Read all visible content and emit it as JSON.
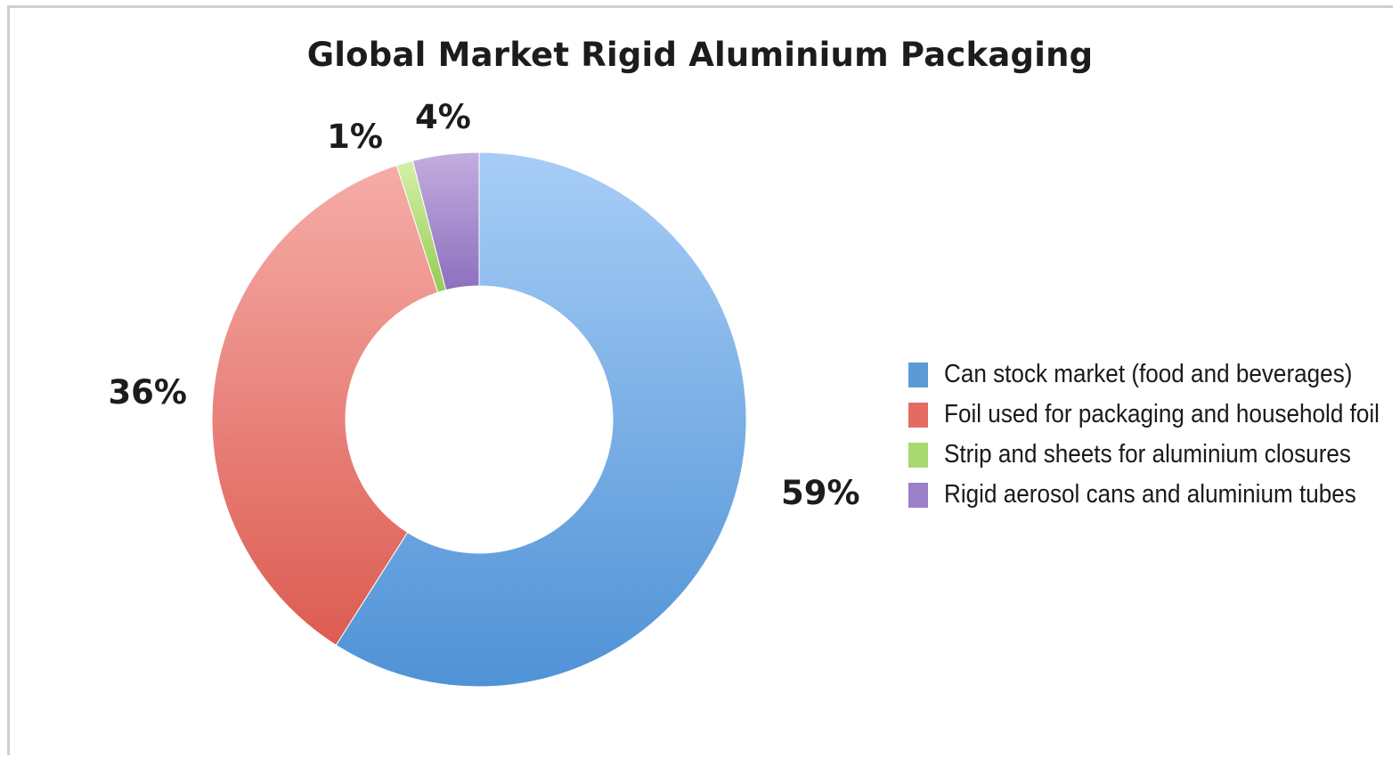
{
  "chart_data": {
    "type": "pie",
    "title": "Global Market Rigid Aluminium Packaging",
    "donut": true,
    "categories": [
      "Can stock market (food and beverages)",
      "Foil used for packaging and household foil",
      "Strip and sheets for aluminium closures",
      "Rigid aerosol cans and aluminium tubes"
    ],
    "values": [
      59,
      36,
      1,
      4
    ],
    "value_labels": [
      "59%",
      "36%",
      "1%",
      "4%"
    ],
    "colors": [
      "#5b9bd5",
      "#e46b62",
      "#a8d86e",
      "#9b7fc8"
    ],
    "legend_position": "right"
  }
}
